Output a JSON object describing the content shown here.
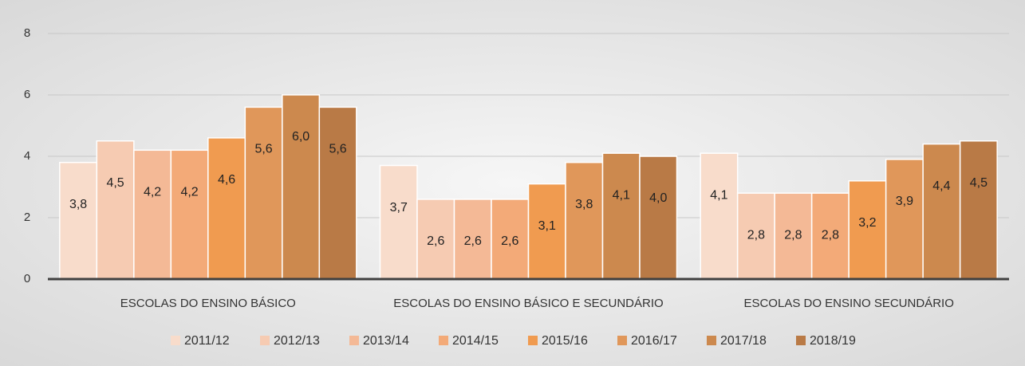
{
  "chart_data": {
    "type": "bar",
    "categories": [
      "ESCOLAS DO ENSINO BÁSICO",
      "ESCOLAS DO ENSINO BÁSICO E SECUNDÁRIO",
      "ESCOLAS DO ENSINO SECUNDÁRIO"
    ],
    "series": [
      {
        "name": "2011/12",
        "color": "#f8dccb",
        "values": [
          3.8,
          3.7,
          4.1
        ],
        "value_labels": [
          "3,8",
          "3,7",
          "4,1"
        ]
      },
      {
        "name": "2012/13",
        "color": "#f6cbb2",
        "values": [
          4.5,
          2.6,
          2.8
        ],
        "value_labels": [
          "4,5",
          "2,6",
          "2,8"
        ]
      },
      {
        "name": "2013/14",
        "color": "#f4b996",
        "values": [
          4.2,
          2.6,
          2.8
        ],
        "value_labels": [
          "4,2",
          "2,6",
          "2,8"
        ]
      },
      {
        "name": "2014/15",
        "color": "#f3aa78",
        "values": [
          4.2,
          2.6,
          2.8
        ],
        "value_labels": [
          "4,2",
          "2,6",
          "2,8"
        ]
      },
      {
        "name": "2015/16",
        "color": "#f09b50",
        "values": [
          4.6,
          3.1,
          3.2
        ],
        "value_labels": [
          "4,6",
          "3,1",
          "3,2"
        ]
      },
      {
        "name": "2016/17",
        "color": "#e0975a",
        "values": [
          5.6,
          3.8,
          3.9
        ],
        "value_labels": [
          "5,6",
          "3,8",
          "3,9"
        ]
      },
      {
        "name": "2017/18",
        "color": "#cc894e",
        "values": [
          6.0,
          4.1,
          4.4
        ],
        "value_labels": [
          "6,0",
          "4,1",
          "4,4"
        ]
      },
      {
        "name": "2018/19",
        "color": "#b97a46",
        "values": [
          5.6,
          4.0,
          4.5
        ],
        "value_labels": [
          "5,6",
          "4,0",
          "4,5"
        ]
      }
    ],
    "ylim": [
      0,
      8
    ],
    "yticks": [
      0,
      2,
      4,
      6,
      8
    ],
    "grid": true,
    "legend": "bottom"
  }
}
